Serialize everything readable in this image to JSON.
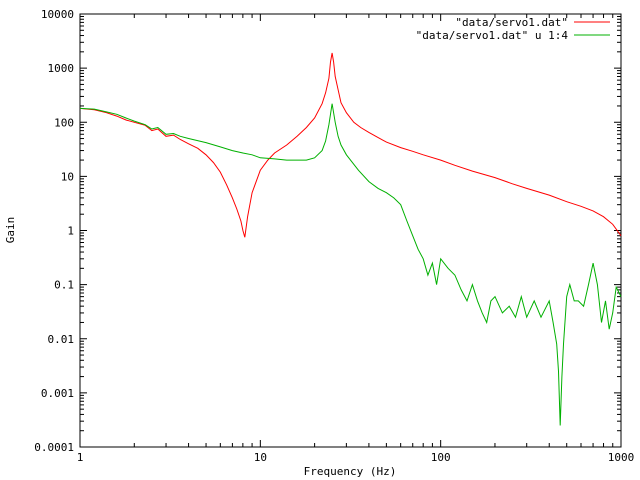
{
  "chart_data": {
    "type": "line",
    "xlabel": "Frequency (Hz)",
    "ylabel": "Gain",
    "xscale": "log",
    "yscale": "log",
    "xlim": [
      1,
      1000
    ],
    "ylim": [
      0.0001,
      10000
    ],
    "grid": false,
    "legend_position": "top-right",
    "x_tick_labels": [
      {
        "value": 1,
        "label": "1"
      },
      {
        "value": 10,
        "label": "10"
      },
      {
        "value": 100,
        "label": "100"
      },
      {
        "value": 1000,
        "label": "1000"
      }
    ],
    "y_tick_labels": [
      {
        "value": 0.0001,
        "label": "0.0001"
      },
      {
        "value": 0.001,
        "label": "0.001"
      },
      {
        "value": 0.01,
        "label": "0.01"
      },
      {
        "value": 0.1,
        "label": "0.1"
      },
      {
        "value": 1,
        "label": "1"
      },
      {
        "value": 10,
        "label": "10"
      },
      {
        "value": 100,
        "label": "100"
      },
      {
        "value": 1000,
        "label": "1000"
      },
      {
        "value": 10000,
        "label": "10000"
      }
    ],
    "series": [
      {
        "name": "\"data/servo1.dat\"",
        "color": "#ff0000",
        "x": [
          1,
          1.2,
          1.4,
          1.6,
          1.8,
          2.0,
          2.3,
          2.5,
          2.7,
          3.0,
          3.3,
          3.6,
          4.0,
          4.5,
          5.0,
          5.5,
          6.0,
          6.5,
          7.0,
          7.4,
          7.8,
          8.0,
          8.2,
          8.5,
          9.0,
          10,
          11,
          12,
          14,
          16,
          18,
          20,
          22,
          23,
          24,
          24.5,
          25,
          25.5,
          26,
          27,
          28,
          30,
          33,
          36,
          40,
          45,
          50,
          60,
          70,
          80,
          100,
          120,
          150,
          200,
          250,
          300,
          400,
          500,
          600,
          700,
          800,
          900,
          1000
        ],
        "y": [
          180,
          170,
          150,
          130,
          110,
          100,
          88,
          70,
          75,
          55,
          58,
          48,
          40,
          33,
          25,
          18,
          12,
          7,
          4,
          2.5,
          1.5,
          1,
          0.75,
          1.8,
          5,
          13,
          20,
          27,
          38,
          55,
          80,
          120,
          220,
          350,
          650,
          1300,
          1900,
          1300,
          700,
          400,
          230,
          150,
          100,
          80,
          65,
          52,
          43,
          34,
          29,
          25,
          20,
          16,
          12.5,
          9.5,
          7.3,
          6,
          4.5,
          3.4,
          2.8,
          2.3,
          1.8,
          1.3,
          0.8
        ]
      },
      {
        "name": "\"data/servo1.dat\" u 1:4",
        "color": "#00b000",
        "x": [
          1,
          1.2,
          1.4,
          1.6,
          1.8,
          2.0,
          2.3,
          2.5,
          2.7,
          3.0,
          3.3,
          3.6,
          4.0,
          5.0,
          6.0,
          7.0,
          8.0,
          9.0,
          10,
          12,
          14,
          16,
          18,
          20,
          22,
          23,
          24,
          25,
          26,
          27,
          28,
          30,
          35,
          40,
          45,
          50,
          55,
          60,
          65,
          70,
          75,
          80,
          85,
          90,
          95,
          100,
          110,
          120,
          130,
          140,
          150,
          160,
          170,
          180,
          190,
          200,
          220,
          240,
          260,
          280,
          300,
          330,
          360,
          400,
          420,
          440,
          450,
          460,
          470,
          480,
          500,
          520,
          550,
          580,
          620,
          660,
          700,
          740,
          780,
          820,
          860,
          900,
          940,
          1000
        ],
        "y": [
          180,
          175,
          155,
          140,
          120,
          105,
          90,
          75,
          80,
          60,
          62,
          55,
          50,
          42,
          35,
          30,
          27,
          25,
          22,
          21,
          20,
          20,
          20,
          22,
          30,
          45,
          90,
          220,
          100,
          55,
          38,
          25,
          13,
          8,
          6,
          5,
          4,
          3,
          1.5,
          0.8,
          0.45,
          0.3,
          0.15,
          0.25,
          0.1,
          0.3,
          0.2,
          0.15,
          0.08,
          0.05,
          0.1,
          0.05,
          0.03,
          0.02,
          0.05,
          0.06,
          0.03,
          0.04,
          0.025,
          0.06,
          0.025,
          0.05,
          0.025,
          0.05,
          0.02,
          0.008,
          0.0025,
          0.00025,
          0.002,
          0.008,
          0.06,
          0.1,
          0.05,
          0.05,
          0.04,
          0.1,
          0.25,
          0.1,
          0.02,
          0.05,
          0.015,
          0.03,
          0.09,
          0.06
        ]
      }
    ]
  }
}
